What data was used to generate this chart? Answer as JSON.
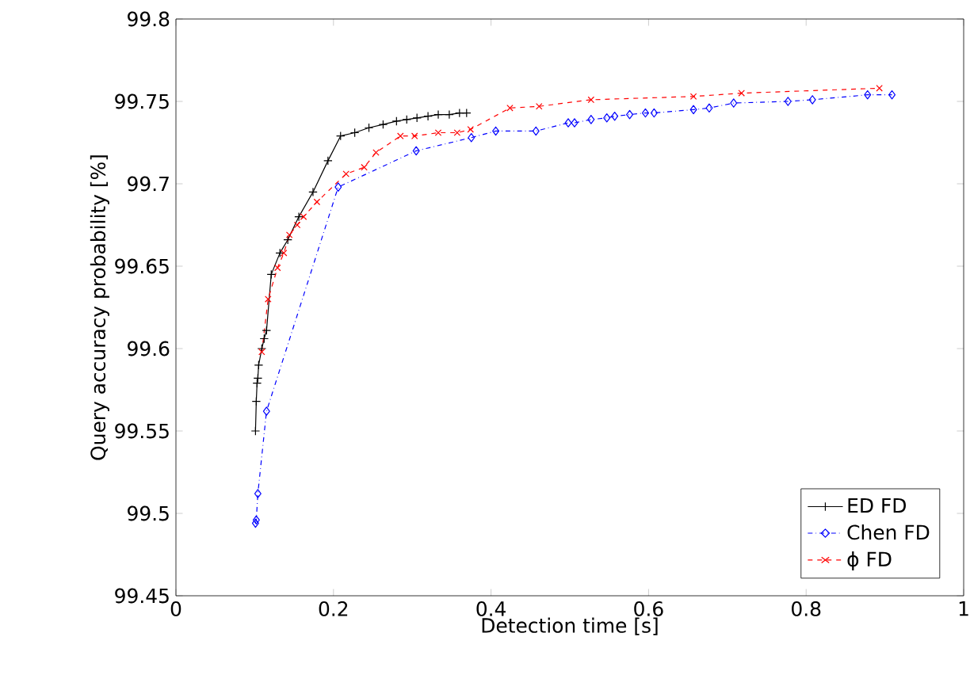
{
  "chart_data": {
    "type": "line",
    "xlabel": "Detection time [s]",
    "ylabel": "Query accuracy probability [%]",
    "xlim": [
      0,
      1
    ],
    "ylim": [
      99.45,
      99.8
    ],
    "xticks": [
      0,
      0.2,
      0.4,
      0.6,
      0.8,
      1
    ],
    "yticks": [
      99.45,
      99.5,
      99.55,
      99.6,
      99.65,
      99.7,
      99.75,
      99.8
    ],
    "grid": false,
    "legend": "bottom right",
    "series": [
      {
        "name": "ED FD",
        "color": "#000000",
        "marker": "plus",
        "line_style": "solid",
        "x": [
          0.101,
          0.102,
          0.103,
          0.104,
          0.105,
          0.109,
          0.112,
          0.115,
          0.121,
          0.132,
          0.142,
          0.156,
          0.174,
          0.193,
          0.209,
          0.227,
          0.245,
          0.263,
          0.28,
          0.293,
          0.306,
          0.32,
          0.333,
          0.347,
          0.36,
          0.369
        ],
        "values": [
          99.55,
          99.568,
          99.579,
          99.582,
          99.59,
          99.6,
          99.606,
          99.611,
          99.645,
          99.658,
          99.666,
          99.68,
          99.695,
          99.714,
          99.729,
          99.731,
          99.734,
          99.736,
          99.738,
          99.739,
          99.74,
          99.741,
          99.742,
          99.742,
          99.743,
          99.743
        ]
      },
      {
        "name": "Chen FD",
        "color": "#0000ff",
        "marker": "diamond",
        "line_style": "dashdot",
        "x": [
          0.101,
          0.102,
          0.104,
          0.115,
          0.206,
          0.305,
          0.375,
          0.406,
          0.457,
          0.498,
          0.506,
          0.527,
          0.547,
          0.557,
          0.576,
          0.596,
          0.607,
          0.657,
          0.677,
          0.708,
          0.777,
          0.808,
          0.878,
          0.909
        ],
        "values": [
          99.494,
          99.496,
          99.512,
          99.562,
          99.698,
          99.72,
          99.728,
          99.732,
          99.732,
          99.737,
          99.737,
          99.739,
          99.74,
          99.741,
          99.742,
          99.743,
          99.743,
          99.745,
          99.746,
          99.749,
          99.75,
          99.751,
          99.754,
          99.754
        ]
      },
      {
        "name": "ϕ FD",
        "color": "#ff0000",
        "marker": "cross",
        "line_style": "dashed",
        "x": [
          0.109,
          0.117,
          0.129,
          0.137,
          0.144,
          0.154,
          0.162,
          0.179,
          0.216,
          0.239,
          0.254,
          0.285,
          0.303,
          0.333,
          0.357,
          0.374,
          0.424,
          0.461,
          0.527,
          0.657,
          0.718,
          0.893
        ],
        "values": [
          99.598,
          99.63,
          99.649,
          99.658,
          99.669,
          99.675,
          99.68,
          99.689,
          99.706,
          99.71,
          99.719,
          99.729,
          99.729,
          99.731,
          99.731,
          99.733,
          99.746,
          99.747,
          99.751,
          99.753,
          99.755,
          99.758
        ]
      }
    ]
  }
}
